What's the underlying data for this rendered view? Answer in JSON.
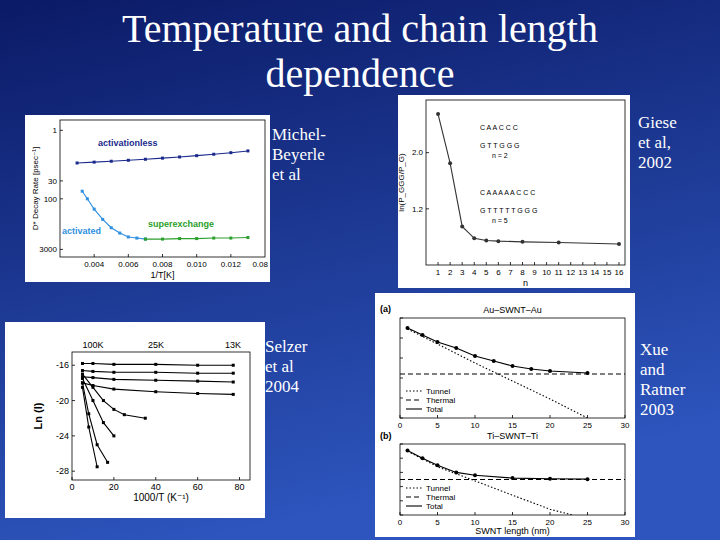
{
  "slide": {
    "title": "Temperature and chain length dependence",
    "captions": [
      [
        "Michel-",
        "Beyerle",
        "et al"
      ],
      [
        "Giese",
        "et al,",
        "2002"
      ],
      [
        "Selzer",
        "et al",
        "2004"
      ],
      [
        "Xue",
        "and",
        "Ratner",
        "2003"
      ]
    ]
  },
  "chart_data": [
    {
      "type": "line",
      "log": "y",
      "xlim": [
        0.002,
        0.014
      ],
      "ylim": [
        5000,
        0.5
      ],
      "xticks": [
        0.004,
        0.006,
        0.008,
        {
          "value": 0.01,
          "label": "0.010"
        },
        0.012
      ],
      "yticks": [
        1,
        30,
        100,
        3000
      ],
      "x_label": "1/T[K]",
      "y_label": "D* Decay Rate [psec⁻¹]",
      "annotations": [
        "0.08"
      ],
      "series": [
        {
          "name": "activationless",
          "color": "#1a2a8c",
          "marker": "square",
          "line_style": "solid",
          "x": [
            0.003,
            0.004,
            0.005,
            0.006,
            0.007,
            0.008,
            0.009,
            0.01,
            0.011,
            0.012,
            0.013
          ],
          "values": [
            9,
            8.5,
            8,
            7.5,
            7,
            6.5,
            6,
            5.5,
            5,
            4.5,
            4
          ]
        },
        {
          "name": "activated",
          "color": "#2f8fe0",
          "marker": "square",
          "line_style": "solid",
          "x": [
            0.0033,
            0.0036,
            0.004,
            0.0045,
            0.005,
            0.0055,
            0.006,
            0.0065,
            0.007
          ],
          "values": [
            60,
            100,
            200,
            400,
            700,
            1000,
            1300,
            1400,
            1500
          ]
        },
        {
          "name": "superexchange",
          "color": "#2ca02c",
          "marker": "square",
          "line_style": "solid",
          "x": [
            0.007,
            0.008,
            0.009,
            0.01,
            0.011,
            0.012,
            0.013
          ],
          "values": [
            1500,
            1500,
            1450,
            1450,
            1400,
            1400,
            1350
          ]
        }
      ]
    },
    {
      "type": "line",
      "xlim": [
        0,
        16.5
      ],
      "ylim": [
        0.4,
        2.75
      ],
      "xticks": [
        1,
        2,
        3,
        4,
        5,
        6,
        7,
        8,
        9,
        10,
        11,
        12,
        13,
        14,
        15,
        16
      ],
      "yticks": [
        1.2,
        {
          "value": 2,
          "label": "2.0"
        }
      ],
      "x_label": "n",
      "y_label": "ln(P_GGG/P_G)",
      "annotations": [
        "C A A C C C",
        "G T T G G G",
        "n = 2",
        "C A A A A A C C C",
        "G T T T T T G G G",
        "n = 5"
      ],
      "series": [
        {
          "color": "#333333",
          "marker": "circle",
          "line_style": "solid",
          "x": [
            1,
            2,
            3,
            4,
            5,
            6,
            8,
            11,
            16
          ],
          "values": [
            2.55,
            1.85,
            0.95,
            0.78,
            0.75,
            0.74,
            0.73,
            0.72,
            0.7
          ]
        }
      ]
    },
    {
      "type": "line",
      "xlim": [
        0,
        85
      ],
      "ylim": [
        -29,
        -14.5
      ],
      "xticks": [
        0,
        20,
        40,
        60,
        80
      ],
      "yticks": [
        -28,
        -24,
        -20,
        -16
      ],
      "x_label": "1000/T (K⁻¹)",
      "y_label": "Ln (I)",
      "annotations": [
        "100K",
        "25K",
        "13K"
      ],
      "series": [
        {
          "color": "#000000",
          "marker": "square",
          "line_style": "solid",
          "x": [
            5,
            10,
            20,
            40,
            60,
            77
          ],
          "values": [
            -15.8,
            -15.8,
            -15.9,
            -15.9,
            -16,
            -16
          ]
        },
        {
          "color": "#000000",
          "marker": "square",
          "line_style": "solid",
          "x": [
            5,
            10,
            20,
            40,
            60,
            77
          ],
          "values": [
            -16.6,
            -16.7,
            -16.8,
            -16.8,
            -16.9,
            -16.9
          ]
        },
        {
          "color": "#000000",
          "marker": "square",
          "line_style": "solid",
          "x": [
            5,
            10,
            20,
            40,
            60,
            77
          ],
          "values": [
            -17.3,
            -17.4,
            -17.6,
            -17.7,
            -17.8,
            -17.9
          ]
        },
        {
          "color": "#000000",
          "marker": "square",
          "line_style": "solid",
          "x": [
            5,
            10,
            20,
            40,
            60,
            77
          ],
          "values": [
            -18,
            -18.3,
            -18.7,
            -19,
            -19.2,
            -19.3
          ]
        },
        {
          "color": "#000000",
          "marker": "square",
          "line_style": "solid",
          "x": [
            5,
            10,
            15,
            20,
            25,
            35
          ],
          "values": [
            -17,
            -18.5,
            -20,
            -21,
            -21.6,
            -22
          ]
        },
        {
          "color": "#000000",
          "marker": "square",
          "line_style": "solid",
          "x": [
            5,
            10,
            15,
            20
          ],
          "values": [
            -17.5,
            -20,
            -22.5,
            -24
          ]
        },
        {
          "color": "#000000",
          "marker": "square",
          "line_style": "solid",
          "x": [
            5,
            8,
            12,
            17
          ],
          "values": [
            -18,
            -21.5,
            -25,
            -27
          ]
        },
        {
          "color": "#000000",
          "marker": "square",
          "line_style": "solid",
          "x": [
            5,
            8,
            12
          ],
          "values": [
            -18.5,
            -23,
            -27.5
          ]
        }
      ]
    },
    {
      "type": "line",
      "title": "Au–SWNT–Au",
      "xlim": [
        0,
        30
      ],
      "ylim": [
        0,
        10
      ],
      "xticks": [
        0,
        5,
        10,
        15,
        20,
        25,
        30
      ],
      "yticks": [
        0,
        2,
        4,
        6,
        8,
        10
      ],
      "tick_labels": "x",
      "legend": "lower left",
      "annotations": [
        "(a)"
      ],
      "series": [
        {
          "name": "Tunnel",
          "color": "#000000",
          "line_style": "dotted",
          "x": [
            1,
            5,
            10,
            15,
            20,
            25
          ],
          "values": [
            8.9,
            7.4,
            5.5,
            3.7,
            1.9,
            0
          ]
        },
        {
          "name": "Thermal",
          "color": "#000000",
          "line_style": "dashed",
          "x": [
            0,
            30
          ],
          "values": [
            4.4,
            4.4
          ]
        },
        {
          "name": "Total",
          "color": "#000000",
          "marker": "circle",
          "line_style": "solid",
          "x": [
            1,
            3,
            5,
            7.5,
            10,
            12.5,
            15,
            17.5,
            20,
            25
          ],
          "values": [
            9,
            8.3,
            7.6,
            7,
            6.2,
            5.7,
            5.2,
            4.9,
            4.7,
            4.5
          ]
        }
      ]
    },
    {
      "type": "line",
      "title": "Ti–SWNT–Ti",
      "xlim": [
        0,
        30
      ],
      "ylim": [
        0,
        10
      ],
      "xticks": [
        0,
        5,
        10,
        15,
        20,
        25,
        30
      ],
      "yticks": [
        0,
        2,
        4,
        6,
        8,
        10
      ],
      "tick_labels": "x",
      "x_label": "SWNT length (nm)",
      "legend": "lower left",
      "annotations": [
        "(b)"
      ],
      "series": [
        {
          "name": "Tunnel",
          "color": "#000000",
          "line_style": "dotted",
          "x": [
            1,
            5,
            10,
            15,
            20,
            23
          ],
          "values": [
            9,
            6.8,
            4.8,
            2.8,
            0.8,
            0
          ]
        },
        {
          "name": "Thermal",
          "color": "#000000",
          "line_style": "dashed",
          "x": [
            0,
            30
          ],
          "values": [
            5,
            5
          ]
        },
        {
          "name": "Total",
          "color": "#000000",
          "marker": "circle",
          "line_style": "solid",
          "x": [
            1,
            3,
            5,
            7.5,
            10,
            15,
            20,
            25
          ],
          "values": [
            9.1,
            8,
            7,
            6,
            5.6,
            5.2,
            5.1,
            5.05
          ]
        }
      ]
    }
  ]
}
